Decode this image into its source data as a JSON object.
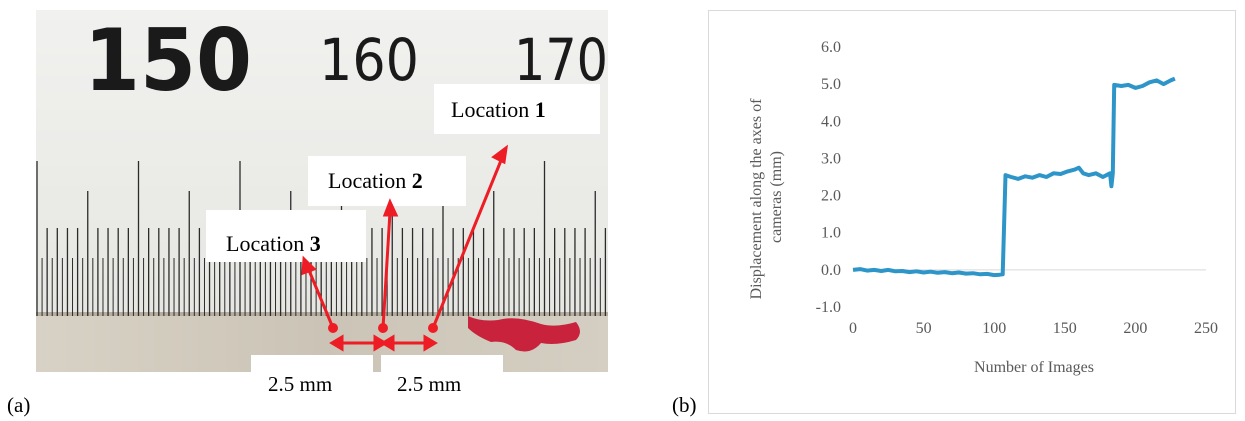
{
  "panel_a": {
    "label": "(a)",
    "ruler_numbers": [
      "150",
      "160",
      "170"
    ],
    "locations": [
      {
        "prefix": "Location ",
        "number": "1"
      },
      {
        "prefix": "Location ",
        "number": "2"
      },
      {
        "prefix": "Location ",
        "number": "3"
      }
    ],
    "spacing_labels": [
      "2.5 mm",
      "2.5 mm"
    ],
    "colors": {
      "marker": "#ee1c24",
      "ruler_bg": "#f2f2f0",
      "tick": "#2b2b2b"
    }
  },
  "panel_b": {
    "label": "(b)"
  },
  "chart_data": {
    "type": "line",
    "title": "",
    "xlabel": "Number of Images",
    "ylabel_lines": [
      "Displacement along the axes of",
      "cameras (mm)"
    ],
    "xlim": [
      0,
      250
    ],
    "ylim": [
      -1.0,
      6.0
    ],
    "x_ticks": [
      "0",
      "50",
      "100",
      "150",
      "200",
      "250"
    ],
    "y_ticks": [
      "-1.0",
      "0.0",
      "1.0",
      "2.0",
      "3.0",
      "4.0",
      "5.0",
      "6.0"
    ],
    "grid": false,
    "legend": "none",
    "line_color": "#2e95c9",
    "series": [
      {
        "x": [
          0,
          5,
          10,
          15,
          20,
          25,
          30,
          35,
          40,
          45,
          50,
          55,
          60,
          65,
          70,
          75,
          80,
          85,
          90,
          95,
          100,
          104,
          106,
          108,
          112,
          117,
          122,
          127,
          132,
          137,
          142,
          147,
          152,
          157,
          160,
          163,
          167,
          172,
          177,
          182,
          183,
          184,
          185,
          190,
          195,
          200,
          205,
          210,
          215,
          220,
          225,
          228
        ],
        "y": [
          0.0,
          0.02,
          -0.02,
          0.0,
          -0.03,
          0.0,
          -0.04,
          -0.03,
          -0.06,
          -0.04,
          -0.07,
          -0.05,
          -0.08,
          -0.06,
          -0.09,
          -0.07,
          -0.1,
          -0.09,
          -0.12,
          -0.11,
          -0.14,
          -0.13,
          -0.12,
          2.55,
          2.5,
          2.45,
          2.52,
          2.48,
          2.55,
          2.5,
          2.6,
          2.58,
          2.65,
          2.7,
          2.75,
          2.6,
          2.55,
          2.6,
          2.5,
          2.6,
          2.25,
          2.6,
          4.98,
          4.95,
          4.98,
          4.9,
          4.95,
          5.05,
          5.1,
          5.0,
          5.1,
          5.15
        ]
      }
    ]
  }
}
